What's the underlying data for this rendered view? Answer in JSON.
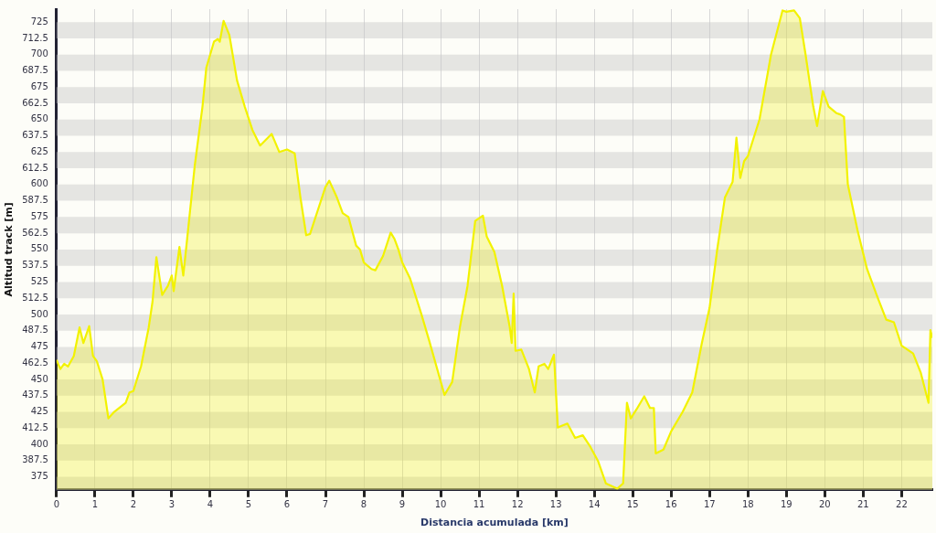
{
  "chart_data": {
    "type": "area",
    "xlabel": "Distancia acumulada [km]",
    "ylabel": "Altitud track [m]",
    "xlim": [
      0,
      22.8
    ],
    "ylim": [
      365,
      735
    ],
    "xticks": [
      0,
      1,
      2,
      3,
      4,
      5,
      6,
      7,
      8,
      9,
      10,
      11,
      12,
      13,
      14,
      15,
      16,
      17,
      18,
      19,
      20,
      21,
      22
    ],
    "yticks": [
      375,
      387.5,
      400,
      412.5,
      425,
      437.5,
      450,
      462.5,
      475,
      487.5,
      500,
      512.5,
      525,
      537.5,
      550,
      562.5,
      575,
      587.5,
      600,
      612.5,
      625,
      637.5,
      650,
      662.5,
      675,
      687.5,
      700,
      712.5,
      725
    ],
    "grid": true,
    "legend": false,
    "marker": "none",
    "line_style": "solid",
    "series": [
      {
        "color": "#f2f200",
        "x": [
          0,
          0.1,
          0.2,
          0.3,
          0.45,
          0.6,
          0.7,
          0.85,
          0.95,
          1.05,
          1.2,
          1.35,
          1.5,
          1.8,
          1.9,
          2.0,
          2.2,
          2.4,
          2.5,
          2.6,
          2.75,
          2.9,
          3.0,
          3.05,
          3.2,
          3.3,
          3.4,
          3.6,
          3.8,
          3.9,
          4.1,
          4.2,
          4.25,
          4.35,
          4.5,
          4.7,
          4.9,
          5.1,
          5.3,
          5.6,
          5.8,
          6.0,
          6.2,
          6.35,
          6.5,
          6.6,
          6.8,
          7.0,
          7.1,
          7.3,
          7.45,
          7.6,
          7.8,
          7.9,
          8.0,
          8.2,
          8.3,
          8.5,
          8.7,
          8.8,
          8.9,
          9.0,
          9.2,
          9.5,
          9.7,
          10.1,
          10.3,
          10.5,
          10.7,
          10.9,
          11.1,
          11.2,
          11.4,
          11.6,
          11.8,
          11.85,
          11.9,
          11.95,
          12.1,
          12.3,
          12.45,
          12.55,
          12.7,
          12.8,
          12.95,
          13.05,
          13.3,
          13.5,
          13.7,
          13.9,
          14.1,
          14.3,
          14.6,
          14.75,
          14.85,
          14.95,
          15.1,
          15.3,
          15.45,
          15.55,
          15.6,
          15.8,
          16.0,
          16.3,
          16.55,
          16.8,
          17.0,
          17.2,
          17.4,
          17.6,
          17.7,
          17.8,
          17.9,
          18.0,
          18.3,
          18.6,
          18.9,
          19.0,
          19.2,
          19.35,
          19.5,
          19.7,
          19.8,
          19.95,
          20.1,
          20.3,
          20.4,
          20.5,
          20.6,
          20.85,
          21.1,
          21.35,
          21.6,
          21.8,
          22.0,
          22.3,
          22.5,
          22.7,
          22.75,
          22.8
        ],
        "values": [
          465,
          458,
          462,
          460,
          468,
          490,
          478,
          491,
          468,
          464,
          450,
          420,
          425,
          432,
          440,
          441,
          460,
          490,
          510,
          544,
          515,
          522,
          530,
          518,
          552,
          530,
          558,
          615,
          660,
          690,
          710,
          712,
          710,
          726,
          715,
          680,
          660,
          642,
          630,
          639,
          625,
          627,
          624,
          590,
          561,
          562,
          580,
          598,
          603,
          590,
          578,
          575,
          553,
          550,
          540,
          535,
          534,
          545,
          563,
          558,
          550,
          540,
          528,
          500,
          480,
          438,
          448,
          490,
          522,
          572,
          576,
          560,
          548,
          522,
          490,
          478,
          516,
          472,
          473,
          458,
          440,
          460,
          462,
          458,
          469,
          413,
          416,
          405,
          407,
          398,
          387,
          370,
          366,
          370,
          432,
          420,
          427,
          437,
          428,
          428,
          393,
          396,
          410,
          425,
          440,
          478,
          505,
          550,
          590,
          602,
          636,
          605,
          618,
          622,
          650,
          700,
          734,
          733,
          734,
          728,
          700,
          660,
          645,
          672,
          660,
          655,
          654,
          652,
          600,
          565,
          535,
          515,
          496,
          494,
          476,
          470,
          455,
          432,
          488,
          482
        ]
      }
    ]
  }
}
